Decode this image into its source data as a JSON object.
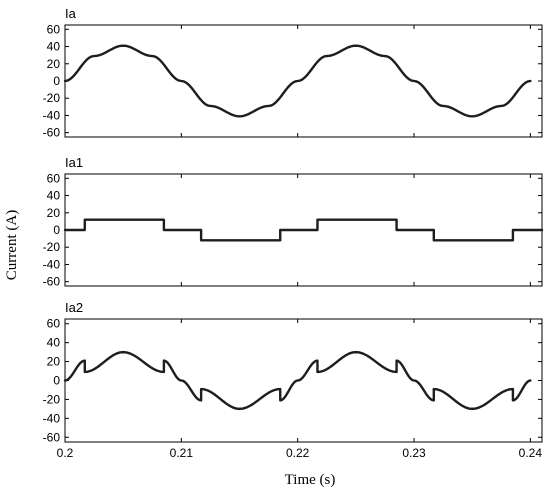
{
  "chart_data": {
    "type": "line",
    "ylabel": "Current (A)",
    "xlabel": "Time (s)",
    "xlim": [
      0.2,
      0.241
    ],
    "x_ticks": [
      "0.2",
      "0.21",
      "0.22",
      "0.23",
      "0.24"
    ],
    "grid": false,
    "panels": [
      {
        "title": "Ia",
        "ylim": [
          -65,
          65
        ],
        "y_ticks": [
          "60",
          "40",
          "20",
          "0",
          "-20",
          "-40",
          "-60"
        ],
        "series": [
          {
            "x": [
              0.2,
              0.2025,
              0.205,
              0.2075,
              0.21,
              0.2125,
              0.215,
              0.2175,
              0.22,
              0.2225,
              0.225,
              0.2275,
              0.23,
              0.2325,
              0.235,
              0.2375,
              0.24
            ],
            "values": [
              0,
              29,
              41,
              29,
              0,
              -29,
              -41,
              -29,
              0,
              29,
              41,
              29,
              0,
              -29,
              -41,
              -29,
              0
            ]
          }
        ]
      },
      {
        "title": "Ia1",
        "ylim": [
          -65,
          65
        ],
        "y_ticks": [
          "60",
          "40",
          "20",
          "0",
          "-20",
          "-40",
          "-60"
        ],
        "series": [
          {
            "x": [
              0.2,
              0.2017,
              0.2017,
              0.2085,
              0.2085,
              0.2117,
              0.2117,
              0.2185,
              0.2185,
              0.2217,
              0.2217,
              0.2285,
              0.2285,
              0.2317,
              0.2317,
              0.2385,
              0.2385,
              0.241
            ],
            "values": [
              0,
              0,
              12,
              12,
              0,
              0,
              -12,
              -12,
              0,
              0,
              12,
              12,
              0,
              0,
              -12,
              -12,
              0,
              0
            ]
          }
        ]
      },
      {
        "title": "Ia2",
        "ylim": [
          -65,
          65
        ],
        "y_ticks": [
          "60",
          "40",
          "20",
          "0",
          "-20",
          "-40",
          "-60"
        ],
        "series": [
          {
            "x": [
              0.2,
              0.2017,
              0.2017,
              0.205,
              0.2085,
              0.2085,
              0.21,
              0.2117,
              0.2117,
              0.215,
              0.2185,
              0.2185,
              0.22,
              0.2217,
              0.2217,
              0.225,
              0.2285,
              0.2285,
              0.23,
              0.2317,
              0.2317,
              0.235,
              0.2385,
              0.2385,
              0.24
            ],
            "values": [
              0,
              21,
              9,
              30,
              9,
              21,
              0,
              -21,
              -9,
              -30,
              -9,
              -21,
              0,
              21,
              9,
              30,
              9,
              21,
              0,
              -21,
              -9,
              -30,
              -9,
              -21,
              0
            ]
          }
        ]
      }
    ]
  }
}
